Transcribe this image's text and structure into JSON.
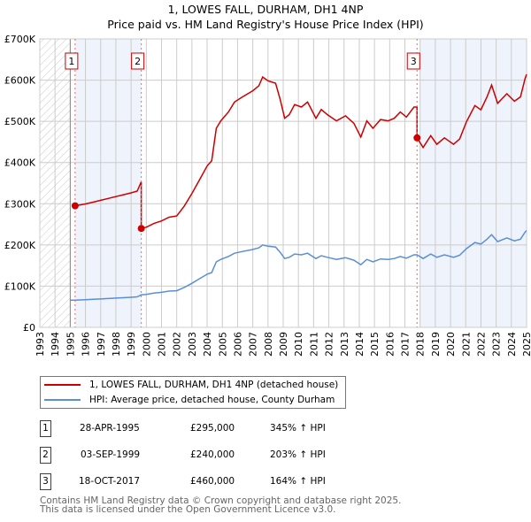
{
  "chart_data": {
    "type": "line",
    "title": "1, LOWES FALL, DURHAM, DH1 4NP",
    "subtitle": "Price paid vs. HM Land Registry's House Price Index (HPI)",
    "xlabel": "",
    "ylabel": "",
    "xlim": [
      1993,
      2025
    ],
    "ylim": [
      0,
      700000
    ],
    "y_ticks": [
      0,
      100000,
      200000,
      300000,
      400000,
      500000,
      600000,
      700000
    ],
    "y_tick_labels": [
      "£0",
      "£100K",
      "£200K",
      "£300K",
      "£400K",
      "£500K",
      "£600K",
      "£700K"
    ],
    "x_ticks": [
      "1993",
      "1994",
      "1995",
      "1996",
      "1997",
      "1998",
      "1999",
      "2000",
      "2001",
      "2002",
      "2003",
      "2004",
      "2005",
      "2006",
      "2007",
      "2008",
      "2009",
      "2010",
      "2011",
      "2012",
      "2013",
      "2014",
      "2015",
      "2016",
      "2017",
      "2018",
      "2019",
      "2020",
      "2021",
      "2022",
      "2023",
      "2024",
      "2025"
    ],
    "grid": true,
    "legend_placement": "below",
    "series": [
      {
        "name": "1, LOWES FALL, DURHAM, DH1 4NP (detached house)",
        "color": "#cc0000",
        "derived_from": "HPI scaled to each sale price"
      },
      {
        "name": "HPI: Average price, detached house, County Durham",
        "color": "#5b8fd4",
        "x": [
          1995.0,
          1995.33,
          1996,
          1996.5,
          1997,
          1997.5,
          1998,
          1998.5,
          1999,
          1999.4,
          1999.67,
          2000,
          2000.5,
          2001,
          2001.5,
          2002,
          2002.5,
          2003,
          2003.5,
          2004,
          2004.3,
          2004.6,
          2004.9,
          2005.4,
          2005.8,
          2006.3,
          2007,
          2007.4,
          2007.65,
          2008,
          2008.5,
          2008.8,
          2009.1,
          2009.4,
          2009.75,
          2010.2,
          2010.6,
          2011.15,
          2011.5,
          2011.9,
          2012.5,
          2013.1,
          2013.65,
          2014.1,
          2014.5,
          2014.9,
          2015.4,
          2015.9,
          2016.3,
          2016.7,
          2017.1,
          2017.6,
          2017.8,
          2018.2,
          2018.7,
          2019.1,
          2019.6,
          2020.2,
          2020.6,
          2021.05,
          2021.6,
          2022.0,
          2022.4,
          2022.7,
          2023.1,
          2023.7,
          2024.2,
          2024.6,
          2024.9,
          2025.0
        ],
        "y": [
          66000,
          66000,
          67000,
          68000,
          69000,
          70000,
          71000,
          72000,
          73000,
          74000,
          79000,
          80000,
          83000,
          85000,
          88000,
          89000,
          97000,
          107000,
          118000,
          129000,
          133000,
          159000,
          165000,
          172000,
          180000,
          184000,
          189000,
          193000,
          200000,
          197000,
          195000,
          182000,
          167000,
          170000,
          178000,
          176000,
          180000,
          167000,
          174000,
          170000,
          165000,
          169000,
          163000,
          152000,
          165000,
          159000,
          166000,
          165000,
          167000,
          172000,
          168000,
          176000,
          176000,
          167000,
          178000,
          170000,
          176000,
          170000,
          175000,
          191000,
          206000,
          202000,
          214000,
          225000,
          208000,
          217000,
          210000,
          214000,
          231000,
          235000
        ]
      }
    ],
    "sales": [
      {
        "label": "1",
        "date": "28-APR-1995",
        "x": 1995.32,
        "price": 295000,
        "price_label": "£295,000",
        "hpi_label": "345% ↑ HPI"
      },
      {
        "label": "2",
        "date": "03-SEP-1999",
        "x": 1999.67,
        "price": 240000,
        "price_label": "£240,000",
        "hpi_label": "203% ↑ HPI"
      },
      {
        "label": "3",
        "date": "18-OCT-2017",
        "x": 2017.8,
        "price": 460000,
        "price_label": "£460,000",
        "hpi_label": "164% ↑ HPI"
      }
    ]
  },
  "footer": {
    "line1": "Contains HM Land Registry data © Crown copyright and database right 2025.",
    "line2": "This data is licensed under the Open Government Licence v3.0."
  }
}
